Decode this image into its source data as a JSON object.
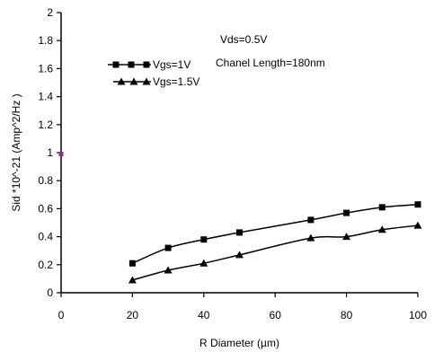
{
  "chart_data": {
    "type": "line",
    "xlabel": "R Diameter (µm)",
    "ylabel": "Sid *10^-21 (Amp^2/Hz )",
    "xlim": [
      0,
      100
    ],
    "ylim": [
      0,
      2
    ],
    "x_ticks": [
      "0",
      "20",
      "40",
      "60",
      "80",
      "100"
    ],
    "y_ticks": [
      "0",
      "0.2",
      "0.4",
      "0.6",
      "0.8",
      "1",
      "1.2",
      "1.4",
      "1.6",
      "1.8",
      "2"
    ],
    "grid": false,
    "legend_position": "top-left",
    "annotations": [
      "Vds=0.5V",
      "Chanel Length=180nm"
    ],
    "series": [
      {
        "name": "Vgs=1V",
        "marker": "square",
        "color": "#000000",
        "x": [
          20,
          30,
          40,
          50,
          70,
          80,
          90,
          100
        ],
        "y": [
          0.21,
          0.32,
          0.38,
          0.43,
          0.52,
          0.57,
          0.61,
          0.63
        ]
      },
      {
        "name": "Vgs=1.5V",
        "marker": "triangle",
        "color": "#000000",
        "x": [
          20,
          30,
          40,
          50,
          70,
          80,
          90,
          100
        ],
        "y": [
          0.09,
          0.16,
          0.21,
          0.27,
          0.39,
          0.4,
          0.45,
          0.48
        ]
      }
    ],
    "extra_points": [
      {
        "x": 0,
        "y": 0.99,
        "color": "#9b2a8a"
      }
    ]
  }
}
